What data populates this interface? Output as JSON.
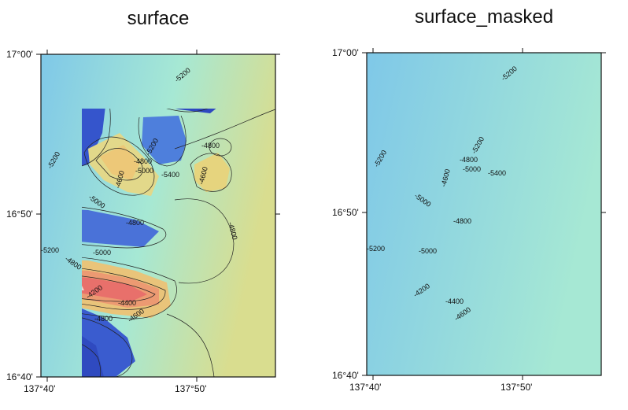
{
  "maps": [
    {
      "title": "surface",
      "masked": false,
      "y_ticks": [
        "17°00'",
        "16°50'",
        "16°40'"
      ],
      "x_ticks": [
        "137°40'",
        "137°50'"
      ],
      "contour_labels": [
        "-5200",
        "-5200",
        "-4800",
        "-4800",
        "-4600",
        "-5000",
        "-5200",
        "-5400",
        "-4600",
        "-5000",
        "-4800",
        "-4800",
        "-5200",
        "-4800",
        "-5000",
        "-4200",
        "-4400",
        "-4800",
        "-4600"
      ]
    },
    {
      "title": "surface_masked",
      "masked": true,
      "y_ticks": [
        "17°00'",
        "16°50'",
        "16°40'"
      ],
      "x_ticks": [
        "137°40'",
        "137°50'"
      ],
      "contour_labels": [
        "-5200",
        "-5200",
        "-4800",
        "-4600",
        "-5000",
        "-5200",
        "-5400",
        "-5000",
        "-4800",
        "-5200",
        "-5000",
        "-4200",
        "-4400",
        "-4600"
      ]
    }
  ],
  "colors": {
    "deep": "#2f4fc8",
    "mid": "#5fa8e8",
    "shallow": "#9ee6d8",
    "highland": "#e8d980",
    "peak": "#e86f6a",
    "mask": "#808080"
  }
}
